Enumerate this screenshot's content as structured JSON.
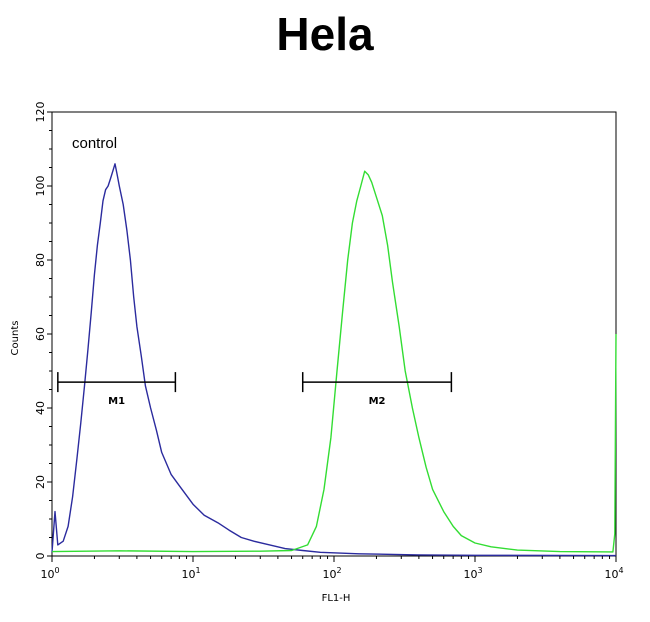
{
  "chart_data": {
    "type": "line",
    "title": "Hela",
    "xlabel": "FL1-H",
    "ylabel": "Counts",
    "x_scale": "log",
    "xlim": [
      1,
      10000
    ],
    "ylim": [
      0,
      120
    ],
    "x_ticks": [
      {
        "base": "10",
        "exp": "0",
        "value": 1
      },
      {
        "base": "10",
        "exp": "1",
        "value": 10
      },
      {
        "base": "10",
        "exp": "2",
        "value": 100
      },
      {
        "base": "10",
        "exp": "3",
        "value": 1000
      },
      {
        "base": "10",
        "exp": "4",
        "value": 10000
      }
    ],
    "y_ticks": [
      0,
      20,
      40,
      60,
      80,
      100,
      120
    ],
    "annotation": "control",
    "markers": [
      {
        "label": "M1",
        "x_start": 1.1,
        "x_end": 7.5,
        "y": 47
      },
      {
        "label": "M2",
        "x_start": 60,
        "x_end": 680,
        "y": 47
      }
    ],
    "series": [
      {
        "color": "#2b2b9e",
        "points": [
          [
            1.0,
            1
          ],
          [
            1.05,
            12
          ],
          [
            1.1,
            3
          ],
          [
            1.2,
            4
          ],
          [
            1.3,
            8
          ],
          [
            1.4,
            16
          ],
          [
            1.5,
            26
          ],
          [
            1.6,
            36
          ],
          [
            1.7,
            46
          ],
          [
            1.8,
            56
          ],
          [
            1.9,
            66
          ],
          [
            2.0,
            76
          ],
          [
            2.1,
            84
          ],
          [
            2.2,
            90
          ],
          [
            2.3,
            96
          ],
          [
            2.4,
            99
          ],
          [
            2.5,
            100
          ],
          [
            2.6,
            102
          ],
          [
            2.7,
            104
          ],
          [
            2.8,
            106
          ],
          [
            2.9,
            103
          ],
          [
            3.0,
            100
          ],
          [
            3.2,
            95
          ],
          [
            3.4,
            88
          ],
          [
            3.6,
            80
          ],
          [
            3.8,
            70
          ],
          [
            4.0,
            62
          ],
          [
            4.3,
            54
          ],
          [
            4.6,
            46
          ],
          [
            5.0,
            40
          ],
          [
            5.5,
            34
          ],
          [
            6.0,
            28
          ],
          [
            7.0,
            22
          ],
          [
            8.0,
            19
          ],
          [
            10,
            14
          ],
          [
            12,
            11
          ],
          [
            15,
            9
          ],
          [
            18,
            7
          ],
          [
            22,
            5
          ],
          [
            27,
            4
          ],
          [
            35,
            3
          ],
          [
            45,
            2
          ],
          [
            60,
            1.5
          ],
          [
            80,
            1
          ],
          [
            150,
            0.6
          ],
          [
            400,
            0.3
          ],
          [
            1000,
            0.2
          ],
          [
            10000,
            0.1
          ]
        ]
      },
      {
        "color": "#33dd33",
        "points": [
          [
            1.0,
            1.2
          ],
          [
            3,
            1.4
          ],
          [
            10,
            1.2
          ],
          [
            30,
            1.3
          ],
          [
            50,
            1.5
          ],
          [
            65,
            3
          ],
          [
            75,
            8
          ],
          [
            85,
            18
          ],
          [
            95,
            32
          ],
          [
            105,
            50
          ],
          [
            115,
            66
          ],
          [
            125,
            80
          ],
          [
            135,
            90
          ],
          [
            145,
            96
          ],
          [
            155,
            100
          ],
          [
            165,
            104
          ],
          [
            175,
            103
          ],
          [
            185,
            101
          ],
          [
            200,
            97
          ],
          [
            220,
            92
          ],
          [
            240,
            84
          ],
          [
            260,
            74
          ],
          [
            290,
            62
          ],
          [
            320,
            50
          ],
          [
            360,
            40
          ],
          [
            400,
            32
          ],
          [
            450,
            24
          ],
          [
            500,
            18
          ],
          [
            600,
            12
          ],
          [
            700,
            8
          ],
          [
            800,
            5.5
          ],
          [
            1000,
            3.5
          ],
          [
            1300,
            2.5
          ],
          [
            2000,
            1.6
          ],
          [
            4000,
            1.2
          ],
          [
            9500,
            1.1
          ],
          [
            9800,
            6
          ],
          [
            10000,
            60
          ]
        ]
      }
    ]
  }
}
